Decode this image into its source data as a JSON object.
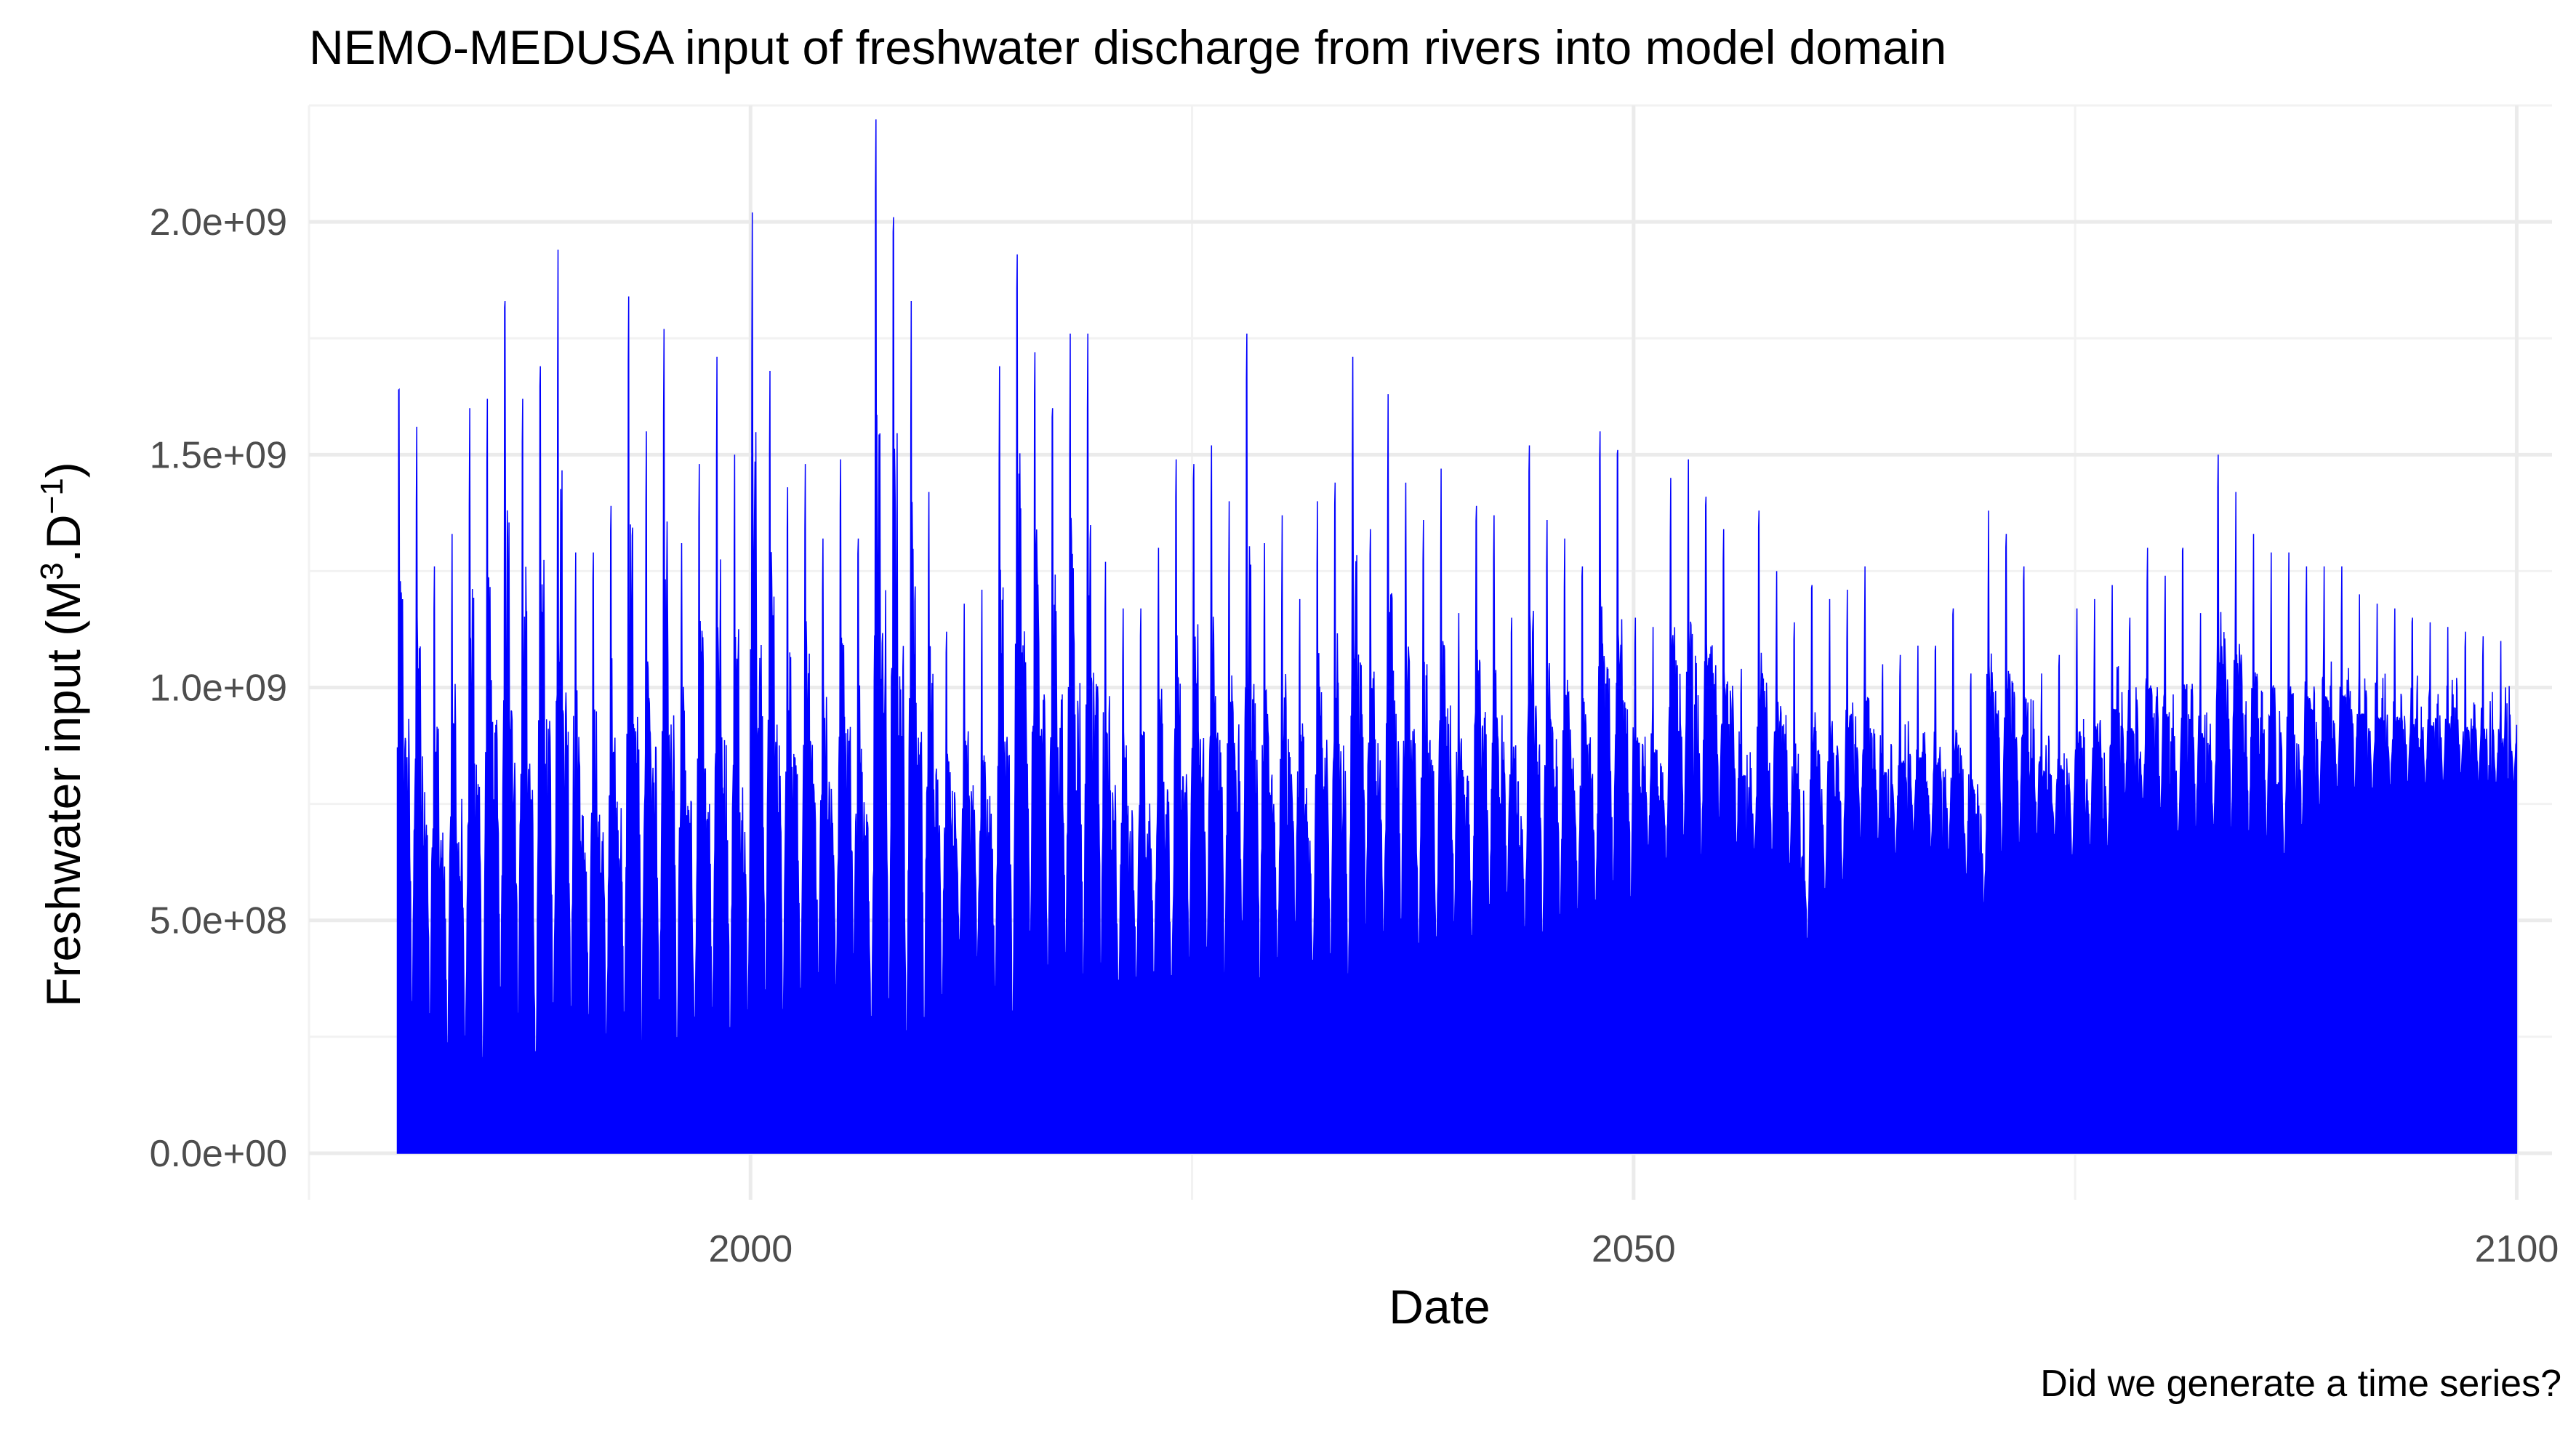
{
  "chart_data": {
    "type": "area",
    "title": "NEMO-MEDUSA input of freshwater discharge from rivers into model domain",
    "xlabel": "Date",
    "ylabel": {
      "main": "Freshwater input (M",
      "sup1": "3",
      "mid": ".D",
      "sup2": "−1",
      "end": ")"
    },
    "caption": "Did we generate a time series?",
    "xlim": [
      1975,
      2102
    ],
    "ylim": [
      -100000000,
      2250000000
    ],
    "x_ticks": [
      {
        "value": 2000,
        "label": "2000"
      },
      {
        "value": 2050,
        "label": "2050"
      },
      {
        "value": 2100,
        "label": "2100"
      }
    ],
    "x_minor_ticks": [
      1975,
      2025,
      2075
    ],
    "y_ticks": [
      {
        "value": 0,
        "label": "0.0e+00"
      },
      {
        "value": 500000000,
        "label": "5.0e+08"
      },
      {
        "value": 1000000000,
        "label": "1.0e+09"
      },
      {
        "value": 1500000000,
        "label": "1.5e+09"
      },
      {
        "value": 2000000000,
        "label": "2.0e+09"
      }
    ],
    "y_minor_ticks": [
      250000000,
      750000000,
      1250000000,
      1750000000,
      2250000000
    ],
    "grid": true,
    "series_color": "#0000ff",
    "series": [
      {
        "x_start": 1980,
        "x_end": 2100,
        "annual_peaks": [
          1640000000.0,
          1560000000.0,
          1260000000.0,
          1330000000.0,
          1600000000.0,
          1620000000.0,
          1830000000.0,
          1620000000.0,
          1690000000.0,
          1940000000.0,
          1290000000.0,
          1290000000.0,
          1390000000.0,
          1840000000.0,
          1550000000.0,
          1770000000.0,
          1310000000.0,
          1480000000.0,
          1710000000.0,
          1500000000.0,
          2020000000.0,
          1680000000.0,
          1430000000.0,
          1480000000.0,
          1320000000.0,
          1490000000.0,
          1320000000.0,
          2220000000.0,
          2010000000.0,
          1830000000.0,
          1420000000.0,
          1120000000.0,
          1180000000.0,
          1210000000.0,
          1690000000.0,
          1930000000.0,
          1720000000.0,
          1600000000.0,
          1760000000.0,
          1760000000.0,
          1270000000.0,
          1170000000.0,
          1170000000.0,
          1300000000.0,
          1490000000.0,
          1480000000.0,
          1520000000.0,
          1400000000.0,
          1760000000.0,
          1310000000.0,
          1370000000.0,
          1190000000.0,
          1400000000.0,
          1440000000.0,
          1710000000.0,
          1340000000.0,
          1630000000.0,
          1440000000.0,
          1360000000.0,
          1470000000.0,
          1160000000.0,
          1390000000.0,
          1370000000.0,
          1150000000.0,
          1520000000.0,
          1360000000.0,
          1320000000.0,
          1260000000.0,
          1550000000.0,
          1510000000.0,
          1150000000.0,
          1130000000.0,
          1450000000.0,
          1490000000.0,
          1410000000.0,
          1340000000.0,
          1040000000.0,
          1380000000.0,
          1250000000.0,
          1140000000.0,
          1220000000.0,
          1190000000.0,
          1210000000.0,
          1260000000.0,
          1050000000.0,
          1070000000.0,
          1090000000.0,
          1090000000.0,
          1170000000.0,
          1030000000.0,
          1380000000.0,
          1330000000.0,
          1260000000.0,
          1030000000.0,
          1070000000.0,
          1170000000.0,
          1190000000.0,
          1220000000.0,
          1150000000.0,
          1300000000.0,
          1240000000.0,
          1300000000.0,
          1160000000.0,
          1500000000.0,
          1420000000.0,
          1330000000.0,
          1290000000.0,
          1290000000.0,
          1260000000.0,
          1260000000.0,
          1260000000.0,
          1200000000.0,
          1180000000.0,
          1170000000.0,
          1150000000.0,
          1140000000.0,
          1130000000.0,
          1120000000.0,
          1110000000.0,
          1100000000.0
        ],
        "annual_minima": [
          270000000.0,
          230000000.0,
          190000000.0,
          200000000.0,
          160000000.0,
          290000000.0,
          250000000.0,
          150000000.0,
          240000000.0,
          240000000.0,
          250000000.0,
          220000000.0,
          240000000.0,
          190000000.0,
          250000000.0,
          170000000.0,
          250000000.0,
          270000000.0,
          190000000.0,
          260000000.0,
          260000000.0,
          260000000.0,
          310000000.0,
          330000000.0,
          330000000.0,
          380000000.0,
          240000000.0,
          220000000.0,
          200000000.0,
          230000000.0,
          300000000.0,
          430000000.0,
          390000000.0,
          330000000.0,
          230000000.0,
          390000000.0,
          350000000.0,
          390000000.0,
          330000000.0,
          360000000.0,
          320000000.0,
          340000000.0,
          340000000.0,
          330000000.0,
          380000000.0,
          390000000.0,
          350000000.0,
          440000000.0,
          310000000.0,
          380000000.0,
          460000000.0,
          370000000.0,
          380000000.0,
          350000000.0,
          440000000.0,
          440000000.0,
          450000000.0,
          400000000.0,
          410000000.0,
          450000000.0,
          440000000.0,
          490000000.0,
          510000000.0,
          460000000.0,
          420000000.0,
          470000000.0,
          490000000.0,
          500000000.0,
          530000000.0,
          500000000.0,
          640000000.0,
          610000000.0,
          640000000.0,
          610000000.0,
          700000000.0,
          630000000.0,
          640000000.0,
          610000000.0,
          590000000.0,
          420000000.0,
          530000000.0,
          560000000.0,
          660000000.0,
          640000000.0,
          630000000.0,
          680000000.0,
          640000000.0,
          630000000.0,
          570000000.0,
          520000000.0,
          620000000.0,
          640000000.0,
          650000000.0,
          670000000.0,
          620000000.0,
          640000000.0,
          640000000.0,
          760000000.0,
          740000000.0,
          720000000.0,
          660000000.0,
          680000000.0,
          690000000.0,
          670000000.0,
          650000000.0,
          660000000.0,
          610000000.0,
          680000000.0,
          730000000.0,
          760000000.0,
          770000000.0,
          760000000.0,
          770000000.0,
          780000000.0,
          780000000.0,
          790000000.0,
          800000000.0,
          790000000.0,
          780000000.0,
          790000000.0
        ]
      }
    ]
  }
}
